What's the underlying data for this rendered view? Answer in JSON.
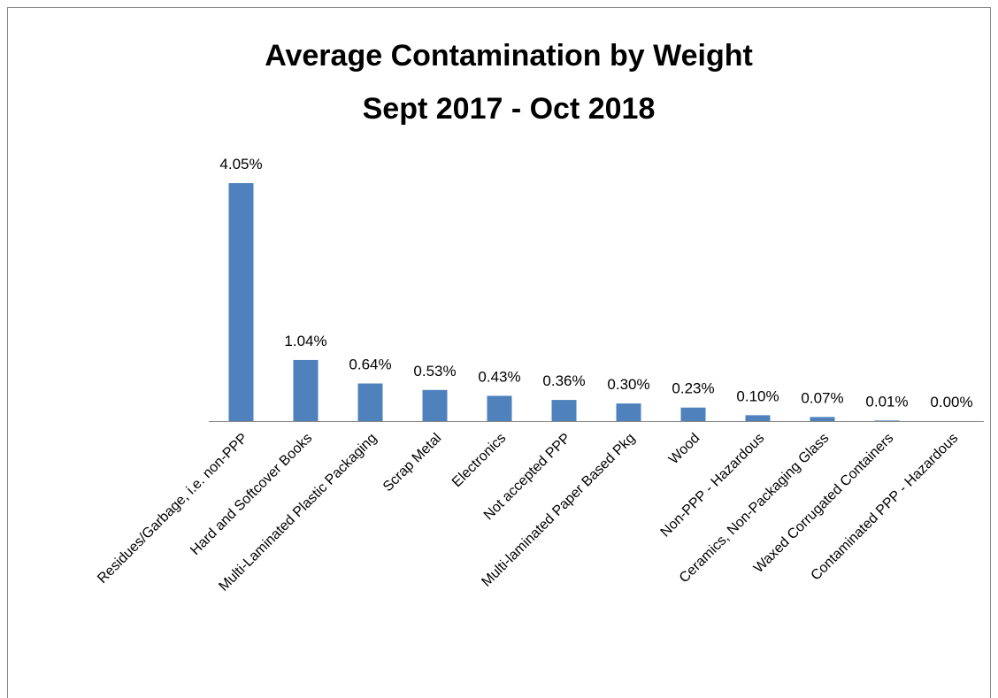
{
  "chart_data": {
    "type": "bar",
    "title": "Average Contamination by Weight",
    "subtitle": "Sept 2017 - Oct 2018",
    "categories": [
      "Residues/Garbage, i.e. non-PPP",
      "Hard and Softcover Books",
      "Multi-Laminated Plastic Packaging",
      "Scrap Metal",
      "Electronics",
      "Not accepted PPP",
      "Multi-laminated Paper Based Pkg",
      "Wood",
      "Non-PPP - Hazardous",
      "Ceramics, Non-Packaging Glass",
      "Waxed Corrugated Containers",
      "Contaminated PPP - Hazardous"
    ],
    "values": [
      4.05,
      1.04,
      0.64,
      0.53,
      0.43,
      0.36,
      0.3,
      0.23,
      0.1,
      0.07,
      0.01,
      0.0
    ],
    "value_labels": [
      "4.05%",
      "1.04%",
      "0.64%",
      "0.53%",
      "0.43%",
      "0.36%",
      "0.30%",
      "0.23%",
      "0.10%",
      "0.07%",
      "0.01%",
      "0.00%"
    ],
    "color": "#4f81bd"
  }
}
